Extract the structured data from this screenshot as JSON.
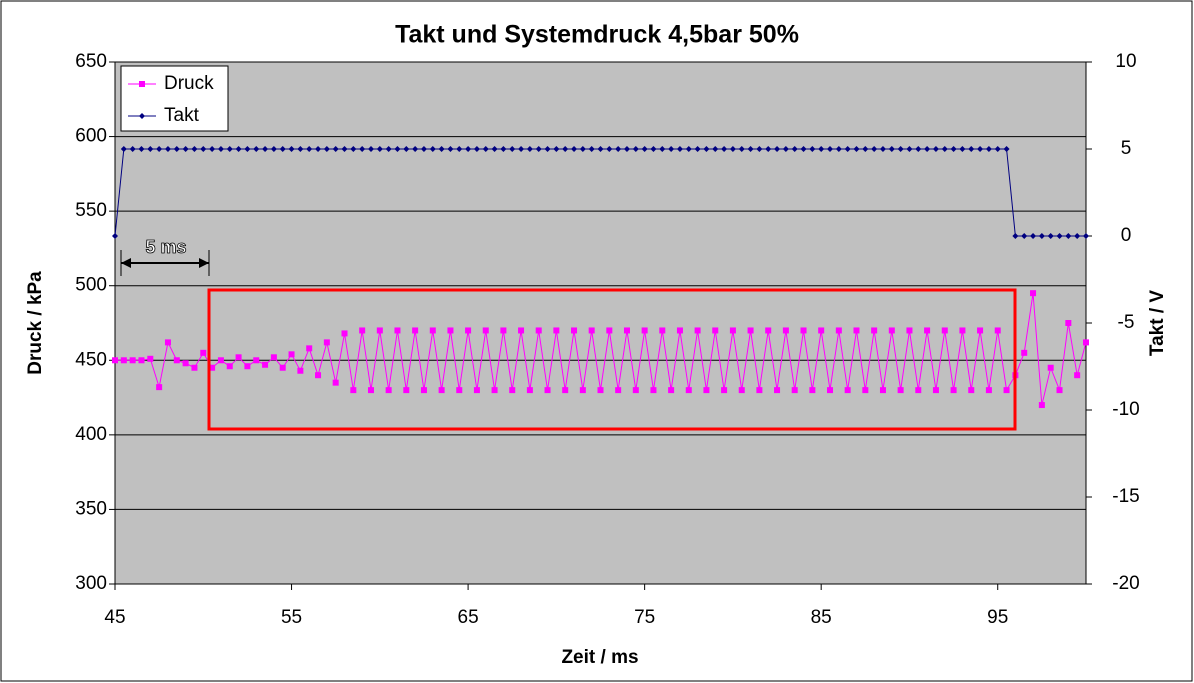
{
  "chart_data": {
    "type": "line",
    "title": "Takt und Systemdruck 4,5bar 50%",
    "xlabel": "Zeit / ms",
    "ylabel": "Druck / kPa",
    "y2label": "Takt / V",
    "annotations": [
      "5 ms"
    ],
    "xlim": [
      45,
      100
    ],
    "xticks": [
      45,
      55,
      65,
      75,
      85,
      95
    ],
    "ylim": [
      300,
      650
    ],
    "yticks": [
      300,
      350,
      400,
      450,
      500,
      550,
      600,
      650
    ],
    "y2lim": [
      -20,
      10
    ],
    "y2ticks": [
      -20,
      -15,
      -10,
      -5,
      0,
      5,
      10
    ],
    "grid": true,
    "legend": "upper left",
    "x": [
      45,
      45.5,
      46,
      46.5,
      47,
      47.5,
      48,
      48.5,
      49,
      49.5,
      50,
      50.5,
      51,
      51.5,
      52,
      52.5,
      53,
      53.5,
      54,
      54.5,
      55,
      55.5,
      56,
      56.5,
      57,
      57.5,
      58,
      58.5,
      59,
      59.5,
      60,
      60.5,
      61,
      61.5,
      62,
      62.5,
      63,
      63.5,
      64,
      64.5,
      65,
      65.5,
      66,
      66.5,
      67,
      67.5,
      68,
      68.5,
      69,
      69.5,
      70,
      70.5,
      71,
      71.5,
      72,
      72.5,
      73,
      73.5,
      74,
      74.5,
      75,
      75.5,
      76,
      76.5,
      77,
      77.5,
      78,
      78.5,
      79,
      79.5,
      80,
      80.5,
      81,
      81.5,
      82,
      82.5,
      83,
      83.5,
      84,
      84.5,
      85,
      85.5,
      86,
      86.5,
      87,
      87.5,
      88,
      88.5,
      89,
      89.5,
      90,
      90.5,
      91,
      91.5,
      92,
      92.5,
      93,
      93.5,
      94,
      94.5,
      95,
      95.5,
      96,
      96.5,
      97,
      97.5,
      98,
      98.5,
      99,
      99.5,
      100
    ],
    "series": [
      {
        "name": "Druck",
        "color": "#ff00ff",
        "axis": "y",
        "values": [
          450,
          450,
          450,
          450,
          451,
          432,
          462,
          450,
          448,
          445,
          455,
          445,
          450,
          446,
          452,
          446,
          450,
          447,
          452,
          445,
          454,
          443,
          458,
          440,
          462,
          435,
          468,
          430,
          470,
          430,
          470,
          430,
          470,
          430,
          470,
          430,
          470,
          430,
          470,
          430,
          470,
          430,
          470,
          430,
          470,
          430,
          470,
          430,
          470,
          430,
          470,
          430,
          470,
          430,
          470,
          430,
          470,
          430,
          470,
          430,
          470,
          430,
          470,
          430,
          470,
          430,
          470,
          430,
          470,
          430,
          470,
          430,
          470,
          430,
          470,
          430,
          470,
          430,
          470,
          430,
          470,
          430,
          470,
          430,
          470,
          430,
          470,
          430,
          470,
          430,
          470,
          430,
          470,
          430,
          470,
          430,
          470,
          430,
          470,
          430,
          470,
          430,
          440,
          455,
          495,
          420,
          445,
          430,
          475,
          440,
          462
        ]
      },
      {
        "name": "Takt",
        "color": "#000080",
        "axis": "y2",
        "values": [
          0,
          5,
          5,
          5,
          5,
          5,
          5,
          5,
          5,
          5,
          5,
          5,
          5,
          5,
          5,
          5,
          5,
          5,
          5,
          5,
          5,
          5,
          5,
          5,
          5,
          5,
          5,
          5,
          5,
          5,
          5,
          5,
          5,
          5,
          5,
          5,
          5,
          5,
          5,
          5,
          5,
          5,
          5,
          5,
          5,
          5,
          5,
          5,
          5,
          5,
          5,
          5,
          5,
          5,
          5,
          5,
          5,
          5,
          5,
          5,
          5,
          5,
          5,
          5,
          5,
          5,
          5,
          5,
          5,
          5,
          5,
          5,
          5,
          5,
          5,
          5,
          5,
          5,
          5,
          5,
          5,
          5,
          5,
          5,
          5,
          5,
          5,
          5,
          5,
          5,
          5,
          5,
          5,
          5,
          5,
          5,
          5,
          5,
          5,
          5,
          5,
          5,
          0,
          0,
          0,
          0,
          0,
          0,
          0,
          0,
          0
        ]
      }
    ]
  }
}
